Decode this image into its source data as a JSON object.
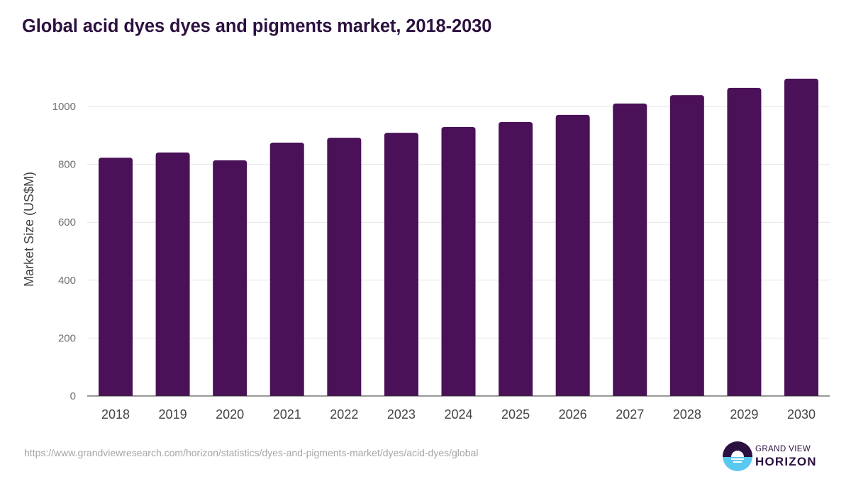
{
  "header": {
    "title": "Global acid dyes dyes and pigments market, 2018-2030"
  },
  "footer": {
    "source_url": "https://www.grandviewresearch.com/horizon/statistics/dyes-and-pigments-market/dyes/acid-dyes/global",
    "logo": {
      "line1": "GRAND VIEW",
      "line2": "HORIZON",
      "icon": "horizon-sun-logo-icon"
    }
  },
  "colors": {
    "bar": "#4b1158",
    "title": "#2c1140",
    "gridline": "#e6e6e6",
    "axis": "#333333",
    "logo_dark": "#2c1140",
    "logo_light": "#5bc8ef"
  },
  "chart_data": {
    "type": "bar",
    "title": "Global acid dyes dyes and pigments market, 2018-2030",
    "xlabel": "",
    "ylabel": "Market Size (US$M)",
    "categories": [
      "2018",
      "2019",
      "2020",
      "2021",
      "2022",
      "2023",
      "2024",
      "2025",
      "2026",
      "2027",
      "2028",
      "2029",
      "2030"
    ],
    "values": [
      823,
      841,
      814,
      875,
      892,
      909,
      929,
      946,
      971,
      1010,
      1039,
      1064,
      1096
    ],
    "yticks": [
      0,
      200,
      400,
      600,
      800,
      1000
    ],
    "ylim": [
      0,
      1100
    ],
    "grid": true,
    "legend": null
  }
}
